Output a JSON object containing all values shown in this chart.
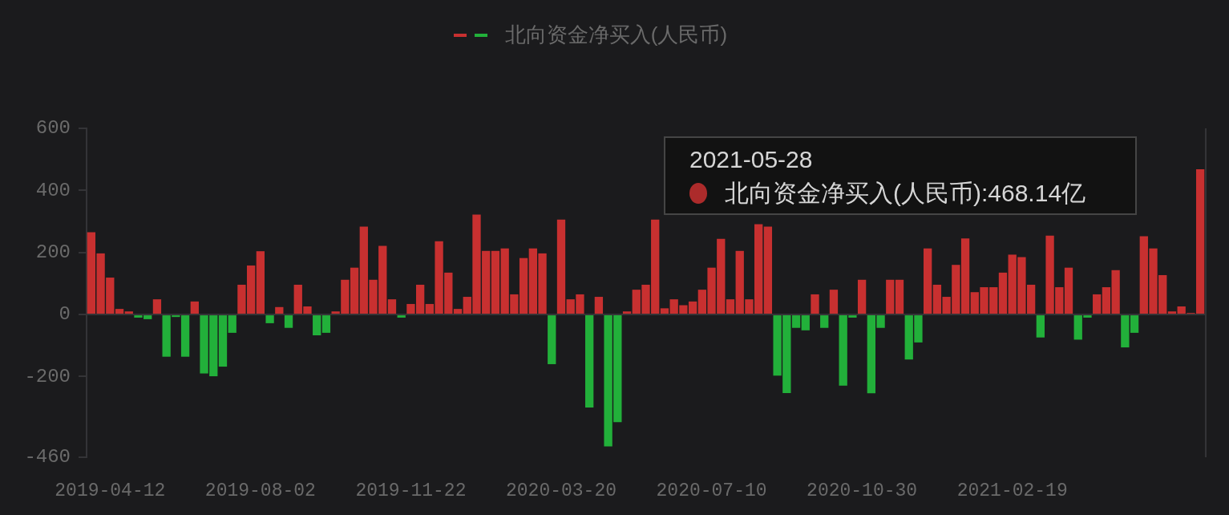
{
  "chart_data": {
    "type": "bar",
    "categories": [
      null,
      null,
      "2019-04-12",
      null,
      null,
      null,
      null,
      null,
      null,
      null,
      null,
      null,
      null,
      null,
      null,
      null,
      null,
      null,
      "2019-08-02",
      null,
      null,
      null,
      null,
      null,
      null,
      null,
      null,
      null,
      null,
      null,
      null,
      null,
      null,
      null,
      "2019-11-22",
      null,
      null,
      null,
      null,
      null,
      null,
      null,
      null,
      null,
      null,
      null,
      null,
      null,
      null,
      null,
      "2020-03-20",
      null,
      null,
      null,
      null,
      null,
      null,
      null,
      null,
      null,
      null,
      null,
      null,
      null,
      null,
      null,
      "2020-07-10",
      null,
      null,
      null,
      null,
      null,
      null,
      null,
      null,
      null,
      null,
      null,
      null,
      null,
      null,
      null,
      "2020-10-30",
      null,
      null,
      null,
      null,
      null,
      null,
      null,
      null,
      null,
      null,
      null,
      null,
      null,
      null,
      null,
      "2021-02-19",
      null,
      null,
      null,
      null,
      null,
      null,
      null,
      null,
      null,
      null,
      null,
      null,
      null,
      null,
      null,
      null,
      null,
      null,
      null,
      null
    ],
    "series": [
      {
        "name": "北向资金净买入(人民币)",
        "values": [
          265,
          197,
          119,
          18,
          10,
          -10,
          -15,
          49,
          -136,
          -8,
          -136,
          42,
          -190,
          -199,
          -168,
          -59,
          96,
          158,
          204,
          -28,
          24,
          -43,
          96,
          26,
          -67,
          -59,
          10,
          112,
          151,
          283,
          112,
          221,
          49,
          -10,
          34,
          96,
          34,
          236,
          135,
          18,
          57,
          322,
          205,
          205,
          213,
          65,
          182,
          213,
          197,
          -160,
          306,
          49,
          65,
          -300,
          57,
          -425,
          -347,
          10,
          80,
          96,
          306,
          20,
          49,
          30,
          42,
          80,
          151,
          244,
          49,
          205,
          49,
          291,
          283,
          -197,
          -253,
          -43,
          -51,
          65,
          -43,
          80,
          -229,
          -10,
          112,
          -254,
          -43,
          112,
          112,
          -145,
          -90,
          213,
          96,
          57,
          160,
          245,
          72,
          88,
          88,
          135,
          193,
          185,
          96,
          -74,
          254,
          88,
          151,
          -81,
          -10,
          65,
          88,
          143,
          -106,
          -59,
          252,
          213,
          127,
          10,
          26,
          5,
          468.14
        ],
        "colors": [
          "#c83030",
          "#c83030",
          "#c83030",
          "#c83030",
          "#c83030",
          "#22b03a",
          "#22b03a",
          "#c83030",
          "#22b03a",
          "#22b03a",
          "#22b03a",
          "#c83030",
          "#22b03a",
          "#22b03a",
          "#22b03a",
          "#22b03a",
          "#c83030",
          "#c83030",
          "#c83030",
          "#22b03a",
          "#c83030",
          "#22b03a",
          "#c83030",
          "#c83030",
          "#22b03a",
          "#22b03a",
          "#c83030",
          "#c83030",
          "#c83030",
          "#c83030",
          "#c83030",
          "#c83030",
          "#c83030",
          "#22b03a",
          "#c83030",
          "#c83030",
          "#c83030",
          "#c83030",
          "#c83030",
          "#c83030",
          "#c83030",
          "#c83030",
          "#c83030",
          "#c83030",
          "#c83030",
          "#c83030",
          "#c83030",
          "#c83030",
          "#c83030",
          "#22b03a",
          "#c83030",
          "#c83030",
          "#c83030",
          "#22b03a",
          "#c83030",
          "#22b03a",
          "#22b03a",
          "#c83030",
          "#c83030",
          "#c83030",
          "#c83030",
          "#c83030",
          "#c83030",
          "#c83030",
          "#c83030",
          "#c83030",
          "#c83030",
          "#c83030",
          "#c83030",
          "#c83030",
          "#c83030",
          "#c83030",
          "#c83030",
          "#22b03a",
          "#22b03a",
          "#22b03a",
          "#22b03a",
          "#c83030",
          "#22b03a",
          "#c83030",
          "#22b03a",
          "#22b03a",
          "#c83030",
          "#22b03a",
          "#22b03a",
          "#c83030",
          "#c83030",
          "#22b03a",
          "#22b03a",
          "#c83030",
          "#c83030",
          "#c83030",
          "#c83030",
          "#c83030",
          "#c83030",
          "#c83030",
          "#c83030",
          "#c83030",
          "#c83030",
          "#c83030",
          "#c83030",
          "#22b03a",
          "#c83030",
          "#c83030",
          "#c83030",
          "#22b03a",
          "#22b03a",
          "#c83030",
          "#c83030",
          "#c83030",
          "#22b03a",
          "#22b03a",
          "#c83030",
          "#c83030",
          "#c83030",
          "#c83030",
          "#c83030",
          "#c83030",
          "#c83030"
        ]
      }
    ],
    "ylim": [
      -460,
      600
    ],
    "yticks": [
      -460,
      -200,
      0,
      200,
      400,
      600
    ],
    "legend": "top",
    "annotations": [
      "2021-05-28",
      "北向资金净买入(人民币):468.14亿"
    ]
  }
}
